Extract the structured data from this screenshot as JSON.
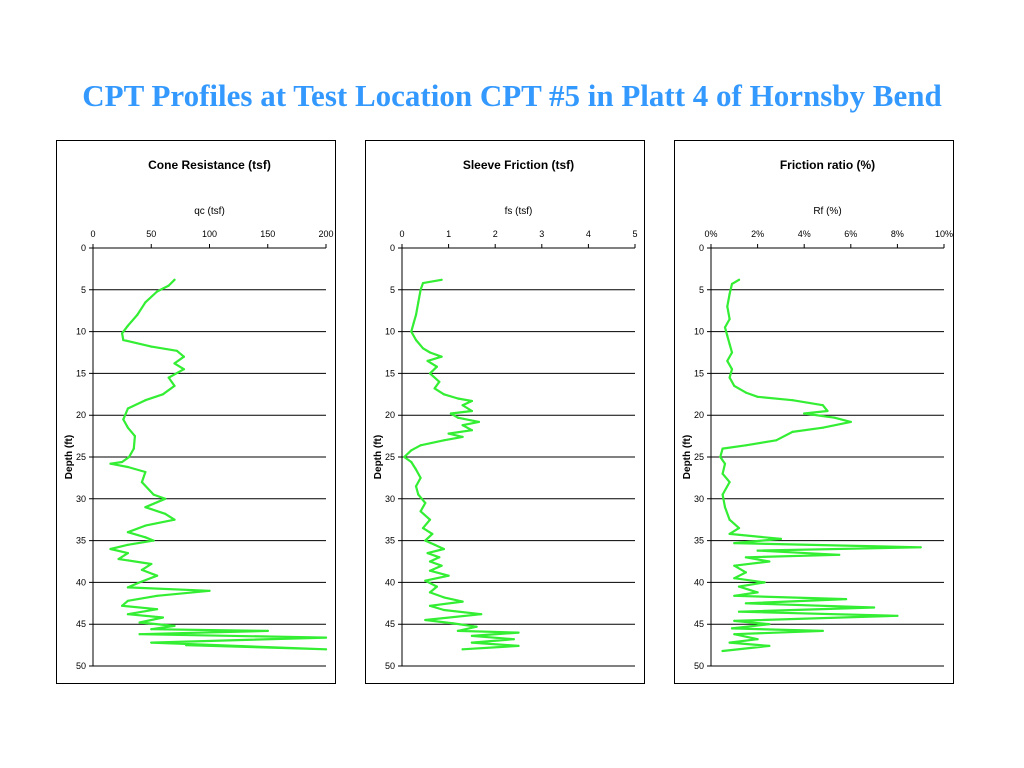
{
  "slide": {
    "title": "CPT Profiles at Test Location CPT #5 in Platt 4 of Hornsby Bend",
    "title_color": "#3399ff"
  },
  "chart_data": [
    {
      "type": "line",
      "title": "Cone Resistance (tsf)",
      "xlabel": "qc (tsf)",
      "ylabel": "Depth (ft)",
      "xlim": [
        0,
        200
      ],
      "ylim": [
        0,
        50
      ],
      "x_ticks": [
        "0",
        "50",
        "100",
        "150",
        "200"
      ],
      "y_ticks": [
        "0",
        "5",
        "10",
        "15",
        "20",
        "25",
        "30",
        "35",
        "40",
        "45",
        "50"
      ],
      "y_inverted": true,
      "grid": "horizontal",
      "line_color": "#33ee33",
      "series": [
        {
          "points": [
            [
              70,
              3.8
            ],
            [
              65,
              4.5
            ],
            [
              55,
              5.2
            ],
            [
              45,
              6.5
            ],
            [
              38,
              8.0
            ],
            [
              30,
              9.3
            ],
            [
              25,
              10.2
            ],
            [
              26,
              11.0
            ],
            [
              50,
              11.8
            ],
            [
              72,
              12.3
            ],
            [
              78,
              13.0
            ],
            [
              70,
              13.8
            ],
            [
              78,
              14.5
            ],
            [
              65,
              15.5
            ],
            [
              70,
              16.5
            ],
            [
              60,
              17.5
            ],
            [
              45,
              18.2
            ],
            [
              30,
              19.2
            ],
            [
              26,
              20.5
            ],
            [
              30,
              21.5
            ],
            [
              36,
              22.5
            ],
            [
              35,
              24.0
            ],
            [
              31,
              25.0
            ],
            [
              25,
              25.6
            ],
            [
              15,
              25.8
            ],
            [
              30,
              26.2
            ],
            [
              45,
              26.8
            ],
            [
              42,
              28.0
            ],
            [
              52,
              29.5
            ],
            [
              62,
              30.0
            ],
            [
              45,
              31.0
            ],
            [
              62,
              31.8
            ],
            [
              70,
              32.5
            ],
            [
              45,
              33.2
            ],
            [
              30,
              34.0
            ],
            [
              45,
              34.6
            ],
            [
              52,
              35.0
            ],
            [
              30,
              35.5
            ],
            [
              15,
              36.0
            ],
            [
              30,
              36.5
            ],
            [
              22,
              37.2
            ],
            [
              50,
              37.8
            ],
            [
              42,
              38.5
            ],
            [
              55,
              39.2
            ],
            [
              40,
              40.0
            ],
            [
              30,
              40.6
            ],
            [
              100,
              41.0
            ],
            [
              55,
              41.6
            ],
            [
              30,
              42.2
            ],
            [
              25,
              42.8
            ],
            [
              55,
              43.2
            ],
            [
              30,
              43.8
            ],
            [
              60,
              44.2
            ],
            [
              40,
              44.8
            ],
            [
              70,
              45.2
            ],
            [
              50,
              45.6
            ],
            [
              150,
              45.8
            ],
            [
              40,
              46.2
            ],
            [
              200,
              46.6
            ],
            [
              50,
              47.2
            ],
            [
              200,
              48.0
            ],
            [
              80,
              47.5
            ]
          ]
        }
      ]
    },
    {
      "type": "line",
      "title": "Sleeve Friction (tsf)",
      "xlabel": "fs (tsf)",
      "ylabel": "Depth (ft)",
      "xlim": [
        0,
        5
      ],
      "ylim": [
        0,
        50
      ],
      "x_ticks": [
        "0",
        "1",
        "2",
        "3",
        "4",
        "5"
      ],
      "y_ticks": [
        "0",
        "5",
        "10",
        "15",
        "20",
        "25",
        "30",
        "35",
        "40",
        "45",
        "50"
      ],
      "y_inverted": true,
      "grid": "horizontal",
      "line_color": "#33ee33",
      "series": [
        {
          "points": [
            [
              0.85,
              3.8
            ],
            [
              0.45,
              4.2
            ],
            [
              0.4,
              5.0
            ],
            [
              0.35,
              6.5
            ],
            [
              0.3,
              8.0
            ],
            [
              0.25,
              9.0
            ],
            [
              0.2,
              10.0
            ],
            [
              0.3,
              11.0
            ],
            [
              0.45,
              12.0
            ],
            [
              0.6,
              12.5
            ],
            [
              0.85,
              13.0
            ],
            [
              0.55,
              13.5
            ],
            [
              0.75,
              14.2
            ],
            [
              0.6,
              15.0
            ],
            [
              0.8,
              16.0
            ],
            [
              0.7,
              16.8
            ],
            [
              0.9,
              17.5
            ],
            [
              1.2,
              18.0
            ],
            [
              1.5,
              18.3
            ],
            [
              1.3,
              18.8
            ],
            [
              1.5,
              19.5
            ],
            [
              1.05,
              19.8
            ],
            [
              1.2,
              20.3
            ],
            [
              1.65,
              20.8
            ],
            [
              1.3,
              21.2
            ],
            [
              1.5,
              21.8
            ],
            [
              1.0,
              22.2
            ],
            [
              1.3,
              22.6
            ],
            [
              0.9,
              23.0
            ],
            [
              0.4,
              23.6
            ],
            [
              0.2,
              24.2
            ],
            [
              0.05,
              25.0
            ],
            [
              0.2,
              25.6
            ],
            [
              0.3,
              26.5
            ],
            [
              0.4,
              27.5
            ],
            [
              0.3,
              28.5
            ],
            [
              0.35,
              29.5
            ],
            [
              0.5,
              30.5
            ],
            [
              0.4,
              31.5
            ],
            [
              0.6,
              32.5
            ],
            [
              0.45,
              33.5
            ],
            [
              0.65,
              34.2
            ],
            [
              0.5,
              35.0
            ],
            [
              0.7,
              35.5
            ],
            [
              0.9,
              36.0
            ],
            [
              0.55,
              36.5
            ],
            [
              0.8,
              37.0
            ],
            [
              0.6,
              37.5
            ],
            [
              0.85,
              38.0
            ],
            [
              0.6,
              38.6
            ],
            [
              1.0,
              39.2
            ],
            [
              0.5,
              39.8
            ],
            [
              0.75,
              40.5
            ],
            [
              0.6,
              41.2
            ],
            [
              0.9,
              41.8
            ],
            [
              1.3,
              42.3
            ],
            [
              0.6,
              42.8
            ],
            [
              0.9,
              43.3
            ],
            [
              1.7,
              43.8
            ],
            [
              0.5,
              44.5
            ],
            [
              1.1,
              44.9
            ],
            [
              1.6,
              45.3
            ],
            [
              1.2,
              45.8
            ],
            [
              2.5,
              46.0
            ],
            [
              1.5,
              46.4
            ],
            [
              2.4,
              46.8
            ],
            [
              1.5,
              47.2
            ],
            [
              2.5,
              47.6
            ],
            [
              1.3,
              48.0
            ]
          ]
        }
      ]
    },
    {
      "type": "line",
      "title": "Friction ratio (%)",
      "xlabel": "Rf (%)",
      "ylabel": "Depth (ft)",
      "xlim": [
        0,
        10
      ],
      "ylim": [
        0,
        50
      ],
      "x_ticks": [
        "0%",
        "2%",
        "4%",
        "6%",
        "8%",
        "10%"
      ],
      "y_ticks": [
        "0",
        "5",
        "10",
        "15",
        "20",
        "25",
        "30",
        "35",
        "40",
        "45",
        "50"
      ],
      "y_inverted": true,
      "grid": "horizontal",
      "line_color": "#33ee33",
      "series": [
        {
          "points": [
            [
              1.2,
              3.8
            ],
            [
              0.9,
              4.3
            ],
            [
              0.8,
              5.5
            ],
            [
              0.7,
              7.0
            ],
            [
              0.8,
              8.5
            ],
            [
              0.6,
              9.5
            ],
            [
              0.7,
              10.5
            ],
            [
              0.8,
              11.5
            ],
            [
              0.9,
              12.5
            ],
            [
              0.7,
              13.5
            ],
            [
              0.9,
              14.5
            ],
            [
              0.8,
              15.5
            ],
            [
              1.0,
              16.5
            ],
            [
              1.5,
              17.3
            ],
            [
              2.0,
              17.8
            ],
            [
              3.5,
              18.2
            ],
            [
              4.8,
              18.8
            ],
            [
              5.0,
              19.5
            ],
            [
              4.0,
              19.8
            ],
            [
              5.3,
              20.3
            ],
            [
              6.0,
              20.8
            ],
            [
              4.8,
              21.5
            ],
            [
              3.5,
              22.0
            ],
            [
              2.8,
              23.0
            ],
            [
              1.5,
              23.6
            ],
            [
              0.5,
              24.0
            ],
            [
              0.4,
              25.0
            ],
            [
              0.6,
              25.8
            ],
            [
              0.5,
              27.0
            ],
            [
              0.8,
              28.0
            ],
            [
              0.5,
              29.5
            ],
            [
              0.6,
              31.0
            ],
            [
              0.8,
              32.5
            ],
            [
              1.2,
              33.5
            ],
            [
              0.8,
              34.2
            ],
            [
              3.0,
              34.8
            ],
            [
              1.0,
              35.3
            ],
            [
              9.0,
              35.8
            ],
            [
              2.0,
              36.2
            ],
            [
              5.5,
              36.7
            ],
            [
              1.5,
              37.0
            ],
            [
              2.5,
              37.5
            ],
            [
              1.0,
              38.0
            ],
            [
              1.5,
              38.8
            ],
            [
              1.0,
              39.5
            ],
            [
              2.3,
              40.0
            ],
            [
              1.2,
              40.5
            ],
            [
              2.0,
              41.2
            ],
            [
              1.0,
              41.6
            ],
            [
              5.8,
              42.0
            ],
            [
              1.5,
              42.5
            ],
            [
              7.0,
              43.0
            ],
            [
              1.2,
              43.5
            ],
            [
              8.0,
              44.0
            ],
            [
              1.0,
              44.6
            ],
            [
              2.5,
              45.0
            ],
            [
              0.9,
              45.5
            ],
            [
              4.8,
              45.8
            ],
            [
              1.0,
              46.2
            ],
            [
              2.0,
              46.8
            ],
            [
              0.8,
              47.2
            ],
            [
              2.5,
              47.6
            ],
            [
              0.5,
              48.2
            ]
          ]
        }
      ]
    }
  ]
}
